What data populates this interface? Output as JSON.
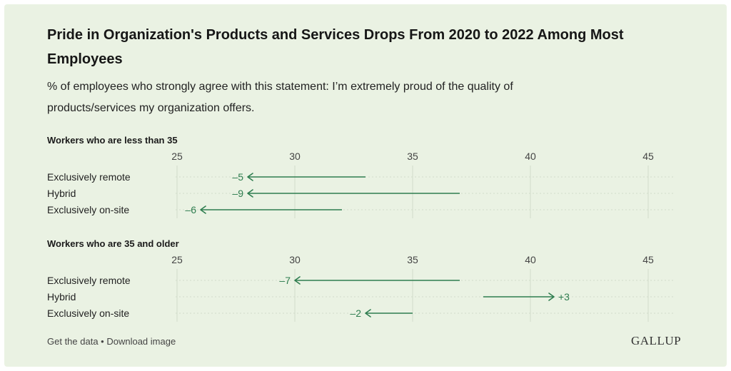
{
  "title": "Pride in Organization's Products and Services Drops From 2020 to 2022 Among Most Employees",
  "subtitle": "% of employees who strongly agree with this statement: I’m extremely proud of the quality of products/services my organization offers.",
  "footer": {
    "get_data": "Get the data",
    "separator": " • ",
    "download": "Download image",
    "brand": "GALLUP"
  },
  "colors": {
    "background": "#eaf2e3",
    "arrow": "#2e7d4f",
    "grid": "#d2dccb"
  },
  "chart_data": [
    {
      "type": "arrow",
      "title": "Workers who are less than 35",
      "xlim": [
        25,
        45
      ],
      "ticks": [
        "25",
        "30",
        "35",
        "40",
        "45"
      ],
      "grid": true,
      "rows": [
        {
          "label": "Exclusively remote",
          "start": 33,
          "end": 28,
          "change": "–5"
        },
        {
          "label": "Hybrid",
          "start": 37,
          "end": 28,
          "change": "–9"
        },
        {
          "label": "Exclusively on-site",
          "start": 32,
          "end": 26,
          "change": "–6"
        }
      ]
    },
    {
      "type": "arrow",
      "title": "Workers who are 35 and older",
      "xlim": [
        25,
        45
      ],
      "ticks": [
        "25",
        "30",
        "35",
        "40",
        "45"
      ],
      "grid": true,
      "rows": [
        {
          "label": "Exclusively remote",
          "start": 37,
          "end": 30,
          "change": "–7"
        },
        {
          "label": "Hybrid",
          "start": 38,
          "end": 41,
          "change": "+3"
        },
        {
          "label": "Exclusively on-site",
          "start": 35,
          "end": 33,
          "change": "–2"
        }
      ]
    }
  ]
}
